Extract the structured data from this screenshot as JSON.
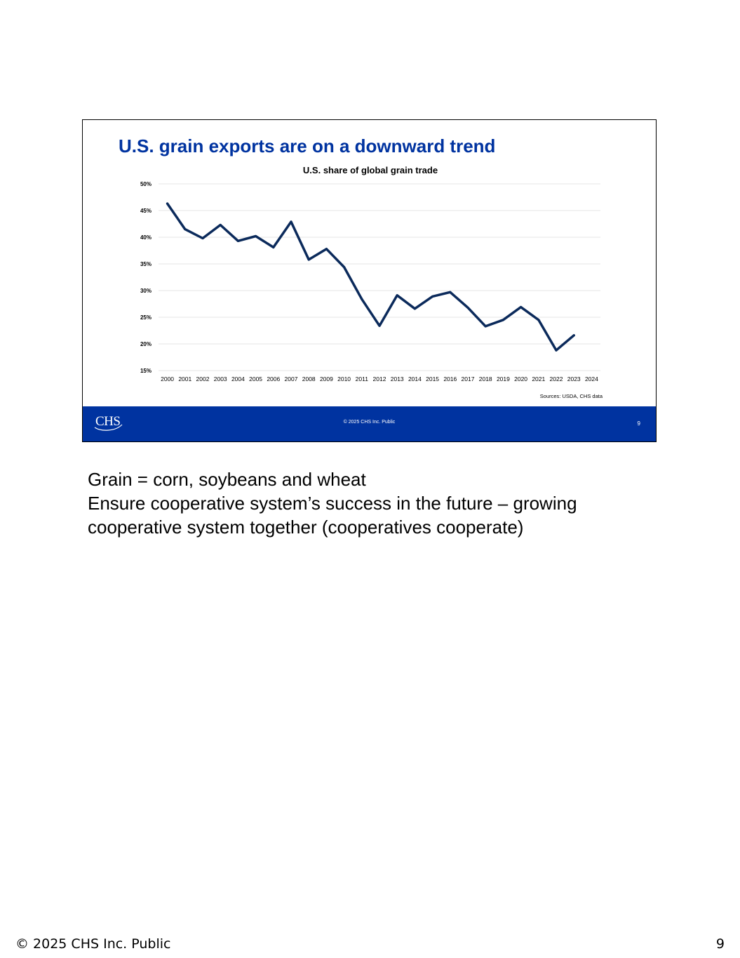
{
  "slide": {
    "title": "U.S. grain exports are on a downward trend",
    "source_note": "Sources: USDA, CHS data",
    "footer": {
      "logo_text": "CHS",
      "copyright": "© 2025 CHS Inc. Public",
      "page_number": "9"
    }
  },
  "chart_data": {
    "type": "line",
    "title": "U.S. share of global grain trade",
    "xlabel": "",
    "ylabel": "",
    "ylim": [
      15,
      50
    ],
    "yticks": [
      "15%",
      "20%",
      "25%",
      "30%",
      "35%",
      "40%",
      "45%",
      "50%"
    ],
    "ytick_values": [
      15,
      20,
      25,
      30,
      35,
      40,
      45,
      50
    ],
    "categories": [
      "2000",
      "2001",
      "2002",
      "2003",
      "2004",
      "2005",
      "2006",
      "2007",
      "2008",
      "2009",
      "2010",
      "2011",
      "2012",
      "2013",
      "2014",
      "2015",
      "2016",
      "2017",
      "2018",
      "2019",
      "2020",
      "2021",
      "2022",
      "2023",
      "2024"
    ],
    "values": [
      46.3,
      41.5,
      39.8,
      42.3,
      39.3,
      40.2,
      38.1,
      42.9,
      35.8,
      37.8,
      34.4,
      28.4,
      23.4,
      29.1,
      26.6,
      28.9,
      29.7,
      26.8,
      23.3,
      24.5,
      26.9,
      24.5,
      18.8,
      21.6,
      null
    ],
    "grid": true,
    "legend": "none",
    "line_color": "#0b2a5b"
  },
  "notes": [
    "Grain = corn, soybeans and wheat",
    "Ensure cooperative system’s success in the future – growing cooperative system together (cooperatives cooperate)"
  ],
  "page_footer": {
    "left": "© 2025 CHS Inc. Public",
    "right": "9"
  }
}
